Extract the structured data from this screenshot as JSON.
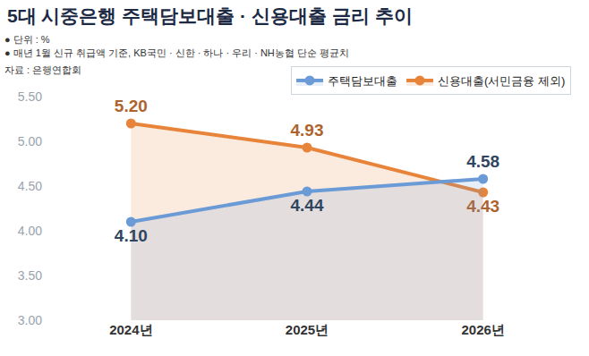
{
  "chart_data": {
    "type": "line",
    "title": "5대 시중은행 주택담보대출 · 신용대출 금리 추이",
    "notes": [
      "● 단위 : %",
      "● 매년 1월 신규 취급액 기준, KB국민 · 신한 · 하나 · 우리 · NH농협 단순 평균치"
    ],
    "source": "자료 : 은행연합회",
    "categories": [
      "2024년",
      "2025년",
      "2026년"
    ],
    "series": [
      {
        "name": "주택담보대출",
        "color": "#6b9bd6",
        "values": [
          4.1,
          4.44,
          4.58
        ],
        "value_labels": [
          "4.10",
          "4.44",
          "4.58"
        ],
        "marker": "circle",
        "line_style": "solid"
      },
      {
        "name": "신용대출(서민금융 제외)",
        "color": "#e8843a",
        "values": [
          5.2,
          4.93,
          4.43
        ],
        "value_labels": [
          "5.20",
          "4.93",
          "4.43"
        ],
        "marker": "circle",
        "line_style": "solid"
      }
    ],
    "ylim": [
      3.0,
      5.5
    ],
    "yticks": [
      {
        "value": 3.0,
        "label": "3.00"
      },
      {
        "value": 3.5,
        "label": "3.50"
      },
      {
        "value": 4.0,
        "label": "4.00"
      },
      {
        "value": 4.5,
        "label": "4.50"
      },
      {
        "value": 5.0,
        "label": "5.00"
      },
      {
        "value": 5.5,
        "label": "5.50"
      }
    ],
    "grid": false,
    "legend": "upper right",
    "data_labels": true
  }
}
